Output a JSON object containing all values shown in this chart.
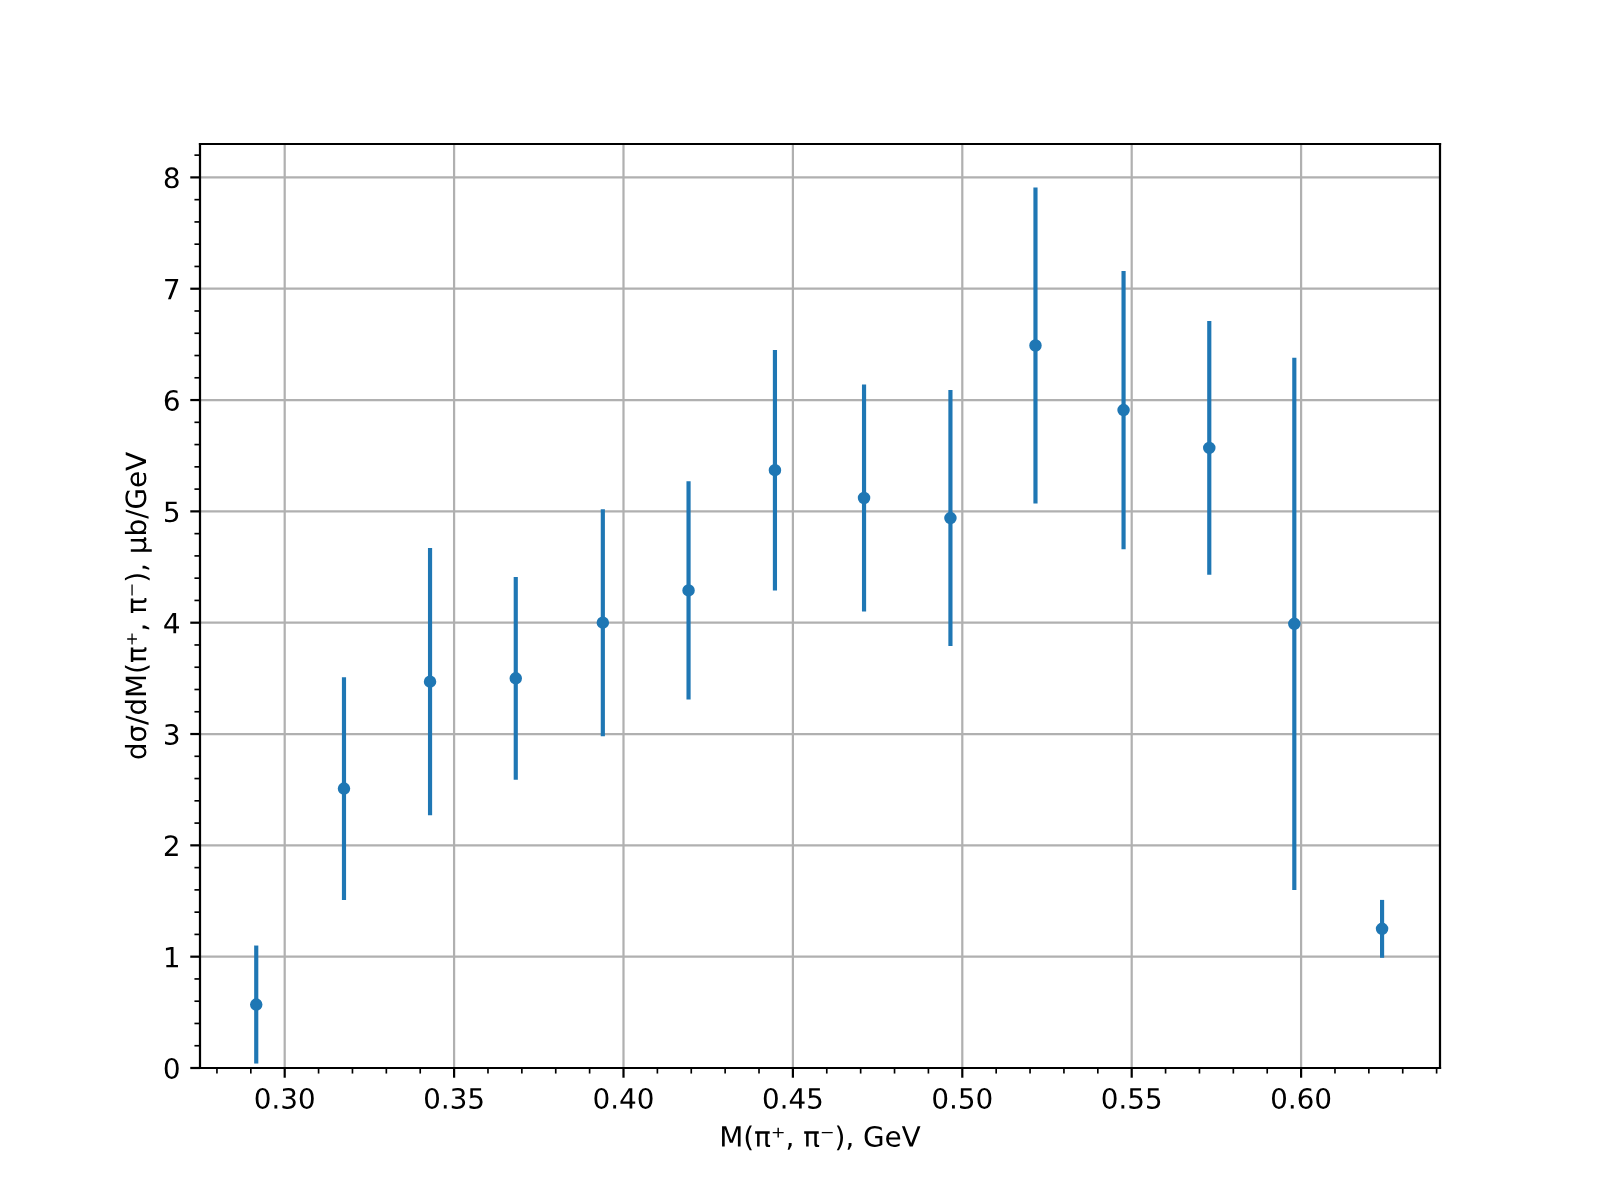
{
  "chart_data": {
    "type": "scatter",
    "xlabel": "M(π⁺, π⁻), GeV",
    "ylabel": "dσ/dM(π⁺, π⁻), μb/GeV",
    "x": [
      0.2916,
      0.3175,
      0.3429,
      0.3682,
      0.3939,
      0.4192,
      0.4447,
      0.471,
      0.4965,
      0.5216,
      0.5476,
      0.5729,
      0.598,
      0.6239
    ],
    "series": [
      {
        "color": "#1f77b4",
        "values": [
          0.57,
          2.51,
          3.47,
          3.5,
          4.0,
          4.29,
          5.37,
          5.12,
          4.94,
          6.49,
          5.91,
          5.57,
          3.99,
          1.25
        ],
        "errors": [
          0.53,
          1.0,
          1.2,
          0.91,
          1.02,
          0.98,
          1.08,
          1.02,
          1.15,
          1.42,
          1.25,
          1.14,
          2.39,
          0.26
        ]
      }
    ],
    "marker": "circle",
    "grid": true,
    "xlim": [
      0.275,
      0.641
    ],
    "xticks": [
      {
        "value": 0.3,
        "label": "0.30"
      },
      0.35,
      {
        "value": 0.4,
        "label": "0.40"
      },
      0.45,
      {
        "value": 0.5,
        "label": "0.50"
      },
      0.55,
      {
        "value": 0.6,
        "label": "0.60"
      }
    ],
    "ylim": [
      0,
      8.3
    ],
    "yticks": [
      0,
      1,
      2,
      3,
      4,
      5,
      6,
      7,
      8
    ]
  }
}
